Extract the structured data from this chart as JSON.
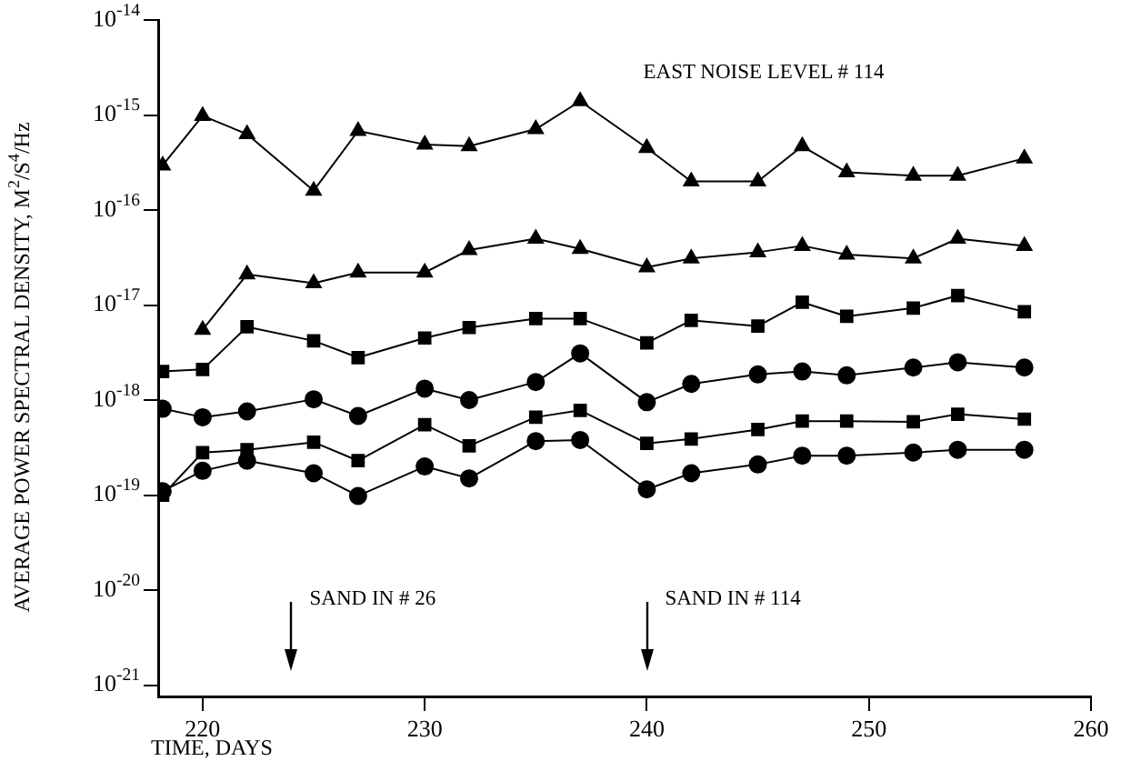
{
  "chart_data": {
    "type": "line",
    "xlabel": "TIME, DAYS",
    "ylabel": "AVERAGE POWER SPECTRAL DENSITY, M$^{2}$/S$^{4}$/Hz",
    "annotations": [
      "EAST NOISE LEVEL # 114"
    ],
    "ref_lines": [
      {
        "axis": "x",
        "value": 224,
        "label": "SAND IN # 26"
      },
      {
        "axis": "x",
        "value": 240,
        "label": "SAND IN # 114"
      }
    ],
    "x": [
      218.2,
      220,
      222,
      225,
      227,
      230,
      232,
      235,
      237,
      240,
      242,
      245,
      247,
      249,
      252,
      254,
      257
    ],
    "series": [
      {
        "marker": "triangle",
        "color": "#000000",
        "values": [
          2.95e-16,
          9.8e-16,
          6.3e-16,
          1.6e-16,
          6.8e-16,
          4.9e-16,
          4.7e-16,
          7.1e-16,
          1.4e-15,
          4.5e-16,
          2e-16,
          2e-16,
          4.7e-16,
          2.5e-16,
          2.3e-16,
          2.3e-16,
          3.5e-16
        ]
      },
      {
        "marker": "triangle",
        "color": "#000000",
        "values": [
          null,
          5.5e-18,
          2.1e-17,
          1.7e-17,
          2.2e-17,
          2.2e-17,
          3.8e-17,
          5e-17,
          3.9e-17,
          2.5e-17,
          3.1e-17,
          3.6e-17,
          4.2e-17,
          3.4e-17,
          3.1e-17,
          5e-17,
          4.2e-17
        ]
      },
      {
        "marker": "square",
        "color": "#000000",
        "values": [
          2e-18,
          2.1e-18,
          5.9e-18,
          4.2e-18,
          2.8e-18,
          4.5e-18,
          5.8e-18,
          7.2e-18,
          7.2e-18,
          4e-18,
          6.9e-18,
          6e-18,
          1.07e-17,
          7.6e-18,
          9.3e-18,
          1.26e-17,
          8.5e-18
        ]
      },
      {
        "marker": "circle",
        "color": "#000000",
        "values": [
          8.1e-19,
          6.6e-19,
          7.6e-19,
          1.02e-18,
          6.8e-19,
          1.32e-18,
          1e-18,
          1.55e-18,
          3.1e-18,
          9.5e-19,
          1.48e-18,
          1.86e-18,
          2e-18,
          1.82e-18,
          2.2e-18,
          2.5e-18,
          2.2e-18
        ]
      },
      {
        "marker": "square",
        "color": "#000000",
        "values": [
          1e-19,
          2.8e-19,
          3e-19,
          3.6e-19,
          2.3e-19,
          5.5e-19,
          3.3e-19,
          6.6e-19,
          7.8e-19,
          3.5e-19,
          3.9e-19,
          4.9e-19,
          6e-19,
          6e-19,
          5.9e-19,
          7.1e-19,
          6.3e-19
        ]
      },
      {
        "marker": "circle",
        "color": "#000000",
        "values": [
          1.1e-19,
          1.8e-19,
          2.3e-19,
          1.7e-19,
          9.8e-20,
          2e-19,
          1.5e-19,
          3.7e-19,
          3.8e-19,
          1.15e-19,
          1.7e-19,
          2.1e-19,
          2.6e-19,
          2.6e-19,
          2.8e-19,
          3e-19,
          3e-19
        ]
      }
    ],
    "log": "y",
    "xlim": [
      218,
      260
    ],
    "xticks": [
      220,
      230,
      240,
      250,
      260
    ],
    "ylim": [
      7.6e-22,
      1e-14
    ],
    "yticks": [
      {
        "value": 1e-21,
        "label": "10$^{-21}$"
      },
      {
        "value": 1e-20,
        "label": "10$^{-20}$"
      },
      {
        "value": 1e-19,
        "label": "10$^{-19}$"
      },
      {
        "value": 1e-18,
        "label": "10$^{-18}$"
      },
      {
        "value": 1e-17,
        "label": "10$^{-17}$"
      },
      {
        "value": 1e-16,
        "label": "10$^{-16}$"
      },
      {
        "value": 1e-15,
        "label": "10$^{-15}$"
      },
      {
        "value": 1e-14,
        "label": "10$^{-14}$"
      }
    ],
    "grid": false,
    "legend": false
  }
}
